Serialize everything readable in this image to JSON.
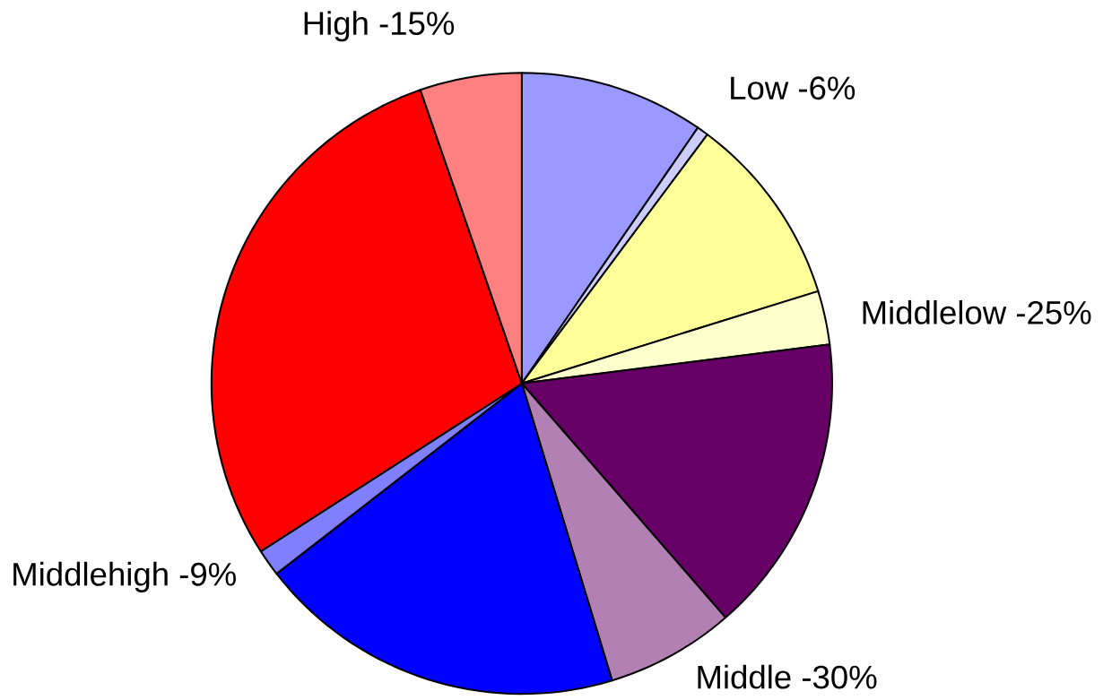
{
  "chart_data": {
    "type": "pie",
    "categories": [
      null,
      "Low -6%",
      null,
      "Middlelow -25%",
      null,
      "Middle -30%",
      null,
      "Middlehigh -9%",
      null,
      "High -15%"
    ],
    "values": [
      9.6,
      0.6,
      10,
      2.8,
      15.6,
      6.7,
      19.2,
      1.4,
      28.8,
      5.3
    ],
    "colors": [
      "#9999ff",
      "#ccccff",
      "#ffff99",
      "#ffffcc",
      "#660066",
      "#b280b2",
      "#0000ff",
      "#8080ff",
      "#ff0000",
      "#ff8080"
    ]
  }
}
